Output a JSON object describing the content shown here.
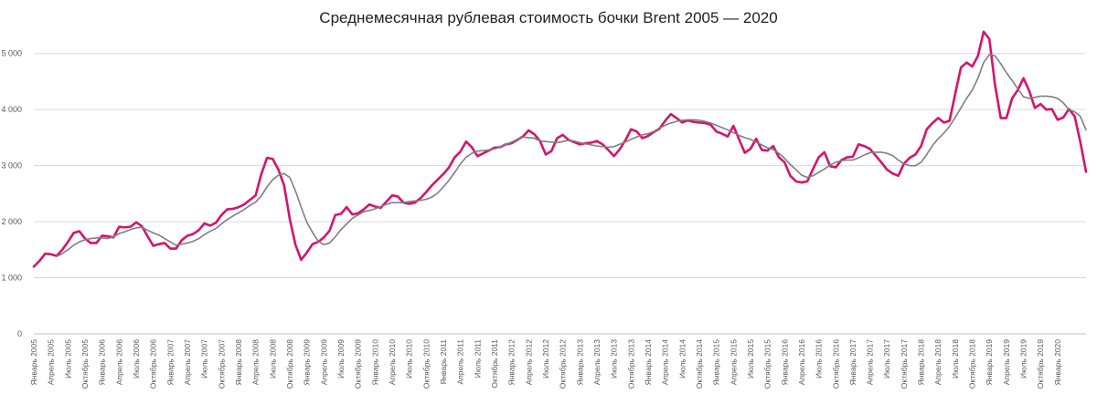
{
  "chart_data": {
    "type": "line",
    "title": "Среднемесячная рублевая стоимость бочки Brent 2005 — 2020",
    "xlabel": "",
    "ylabel": "",
    "ylim": [
      0,
      5500
    ],
    "yticks": [
      0,
      1000,
      2000,
      3000,
      4000,
      5000
    ],
    "ytick_labels": [
      "0",
      "1 000",
      "2 000",
      "3 000",
      "4 000",
      "5 000"
    ],
    "grid": "horizontal",
    "legend": "none",
    "x_start": "2005-01",
    "x_step_months": 1,
    "x_tick_every_months": 3,
    "xtick_labels": [
      "Январь 2005",
      "Апрель 2005",
      "Июль 2005",
      "Октябрь 2005",
      "Январь 2006",
      "Апрель 2006",
      "Июль 2006",
      "Октябрь 2006",
      "Январь 2007",
      "Апрель 2007",
      "Июль 2007",
      "Октябрь 2007",
      "Январь 2008",
      "Апрель 2008",
      "Июль 2008",
      "Октябрь 2008",
      "Январь 2009",
      "Апрель 2009",
      "Июль 2009",
      "Октябрь 2009",
      "Январь 2010",
      "Апрель 2010",
      "Июль 2010",
      "Октябрь 2010",
      "Январь 2011",
      "Апрель 2011",
      "Июль 2011",
      "Октябрь 2011",
      "Январь 2012",
      "Апрель 2012",
      "Июль 2012",
      "Октябрь 2012",
      "Январь 2013",
      "Апрель 2013",
      "Июль 2013",
      "Октябрь 2013",
      "Январь 2014",
      "Апрель 2014",
      "Июль 2014",
      "Октябрь 2014",
      "Январь 2015",
      "Апрель 2015",
      "Июль 2015",
      "Октябрь 2015",
      "Январь 2016",
      "Апрель 2016",
      "Июль 2016",
      "Октябрь 2016",
      "Январь 2017",
      "Апрель 2017",
      "Июль 2017",
      "Октябрь 2017",
      "Январь 2018",
      "Апрель 2018",
      "Июль 2018",
      "Октябрь 2018",
      "Январь 2019",
      "Апрель 2019",
      "Июль 2019",
      "Октябрь 2019",
      "Январь 2020"
    ],
    "series": [
      {
        "color": "#d6136d",
        "values": [
          1200,
          1300,
          1430,
          1420,
          1390,
          1500,
          1640,
          1800,
          1830,
          1700,
          1620,
          1620,
          1750,
          1740,
          1720,
          1910,
          1900,
          1910,
          1990,
          1920,
          1740,
          1570,
          1600,
          1620,
          1520,
          1520,
          1670,
          1750,
          1780,
          1850,
          1970,
          1930,
          1980,
          2120,
          2220,
          2230,
          2260,
          2310,
          2390,
          2470,
          2850,
          3140,
          3120,
          2930,
          2650,
          2050,
          1590,
          1320,
          1450,
          1600,
          1640,
          1720,
          1840,
          2120,
          2140,
          2260,
          2130,
          2150,
          2220,
          2310,
          2270,
          2250,
          2360,
          2470,
          2450,
          2340,
          2320,
          2340,
          2420,
          2530,
          2650,
          2750,
          2850,
          2970,
          3150,
          3250,
          3430,
          3330,
          3170,
          3220,
          3270,
          3320,
          3330,
          3380,
          3400,
          3460,
          3520,
          3630,
          3560,
          3440,
          3200,
          3260,
          3490,
          3550,
          3460,
          3420,
          3380,
          3400,
          3410,
          3440,
          3380,
          3280,
          3170,
          3290,
          3450,
          3650,
          3610,
          3490,
          3530,
          3600,
          3660,
          3800,
          3920,
          3850,
          3770,
          3810,
          3780,
          3770,
          3760,
          3730,
          3610,
          3570,
          3520,
          3710,
          3470,
          3230,
          3300,
          3480,
          3280,
          3270,
          3350,
          3150,
          3060,
          2820,
          2720,
          2700,
          2720,
          2940,
          3150,
          3240,
          2990,
          2970,
          3100,
          3150,
          3160,
          3380,
          3350,
          3300,
          3180,
          3060,
          2930,
          2860,
          2820,
          3040,
          3140,
          3200,
          3350,
          3650,
          3760,
          3850,
          3770,
          3800,
          4280,
          4750,
          4840,
          4770,
          4960,
          5390,
          5260,
          4440,
          3850,
          3850,
          4200,
          4350,
          4560,
          4340,
          4030,
          4100,
          4000,
          4010,
          3820,
          3860,
          4010,
          3880,
          3420,
          2890
        ]
      },
      {
        "color": "#7f7f7f",
        "values": [
          null,
          null,
          null,
          null,
          1380,
          1430,
          1500,
          1580,
          1640,
          1680,
          1700,
          1710,
          1710,
          1700,
          1730,
          1790,
          1820,
          1860,
          1890,
          1900,
          1850,
          1800,
          1760,
          1700,
          1640,
          1580,
          1600,
          1620,
          1650,
          1700,
          1770,
          1830,
          1880,
          1960,
          2040,
          2100,
          2160,
          2220,
          2290,
          2350,
          2460,
          2620,
          2750,
          2830,
          2860,
          2790,
          2550,
          2260,
          1990,
          1810,
          1650,
          1590,
          1620,
          1730,
          1860,
          1960,
          2060,
          2120,
          2180,
          2200,
          2230,
          2270,
          2310,
          2340,
          2340,
          2340,
          2360,
          2370,
          2380,
          2400,
          2440,
          2510,
          2620,
          2740,
          2880,
          3030,
          3150,
          3220,
          3260,
          3270,
          3280,
          3300,
          3330,
          3380,
          3420,
          3470,
          3510,
          3500,
          3490,
          3440,
          3430,
          3420,
          3410,
          3430,
          3450,
          3440,
          3410,
          3390,
          3370,
          3350,
          3340,
          3330,
          3340,
          3380,
          3420,
          3470,
          3510,
          3550,
          3570,
          3610,
          3670,
          3720,
          3760,
          3790,
          3810,
          3820,
          3820,
          3810,
          3790,
          3760,
          3720,
          3680,
          3640,
          3590,
          3540,
          3500,
          3470,
          3420,
          3370,
          3320,
          3290,
          3220,
          3130,
          3020,
          2930,
          2830,
          2790,
          2820,
          2880,
          2940,
          3010,
          3060,
          3090,
          3100,
          3100,
          3140,
          3190,
          3230,
          3240,
          3240,
          3220,
          3180,
          3100,
          3030,
          3000,
          3000,
          3060,
          3200,
          3360,
          3480,
          3580,
          3700,
          3860,
          4030,
          4200,
          4350,
          4560,
          4840,
          4980,
          4960,
          4820,
          4660,
          4520,
          4370,
          4230,
          4200,
          4220,
          4240,
          4240,
          4230,
          4200,
          4120,
          4000,
          3960,
          3880,
          3640
        ]
      }
    ]
  }
}
